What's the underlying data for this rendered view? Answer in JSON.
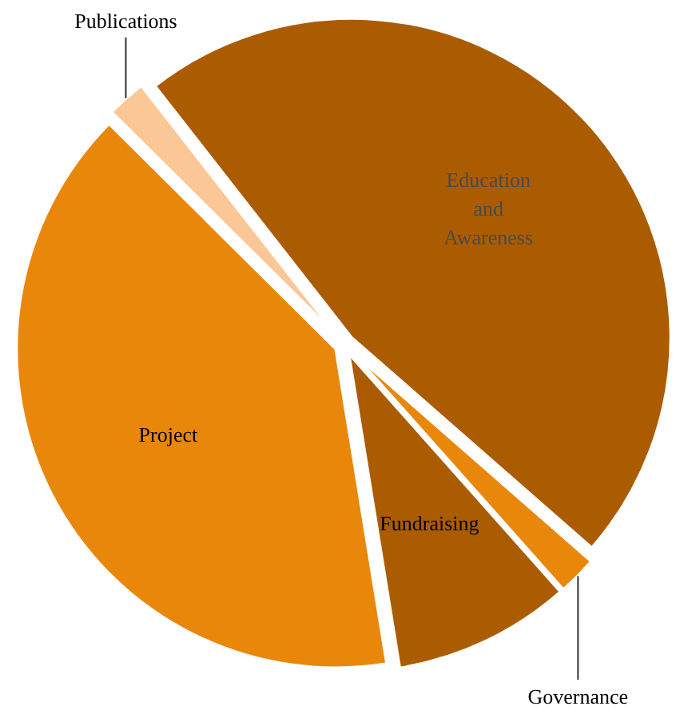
{
  "chart_data": {
    "type": "pie",
    "categories": [
      "Education\nand\nAwareness",
      "Governance",
      "Fundraising",
      "Project",
      "Publications"
    ],
    "values": [
      47,
      2,
      9,
      40,
      2
    ],
    "colors": [
      "#ab5c00",
      "#e8870a",
      "#ab5c00",
      "#e8870a",
      "#fbc796"
    ]
  }
}
